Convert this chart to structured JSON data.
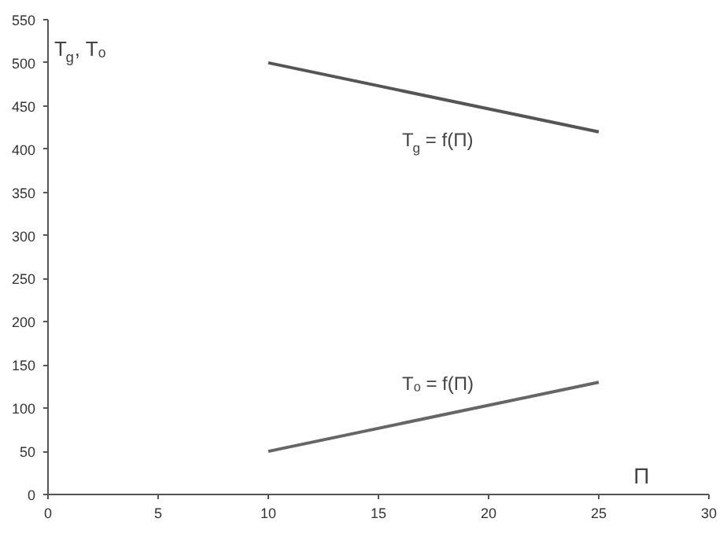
{
  "chart_data": {
    "type": "line",
    "xlabel": "Π",
    "ylabel": "T$_{g}$, Tₒ",
    "xlim": [
      0,
      30
    ],
    "ylim": [
      0,
      550
    ],
    "xticks": [
      0,
      5,
      10,
      15,
      20,
      25,
      30
    ],
    "yticks": [
      0,
      50,
      100,
      150,
      200,
      250,
      300,
      350,
      400,
      450,
      500,
      550
    ],
    "grid": false,
    "marker": "none",
    "line_style": "solid",
    "x": [
      10,
      25
    ],
    "series": [
      {
        "values": [
          500,
          420
        ],
        "color": "#555555"
      },
      {
        "values": [
          50,
          130
        ],
        "color": "#666666"
      }
    ],
    "annotations": [
      "T$_{g}$ = f(Π)",
      "Tₒ = f(Π)"
    ]
  }
}
